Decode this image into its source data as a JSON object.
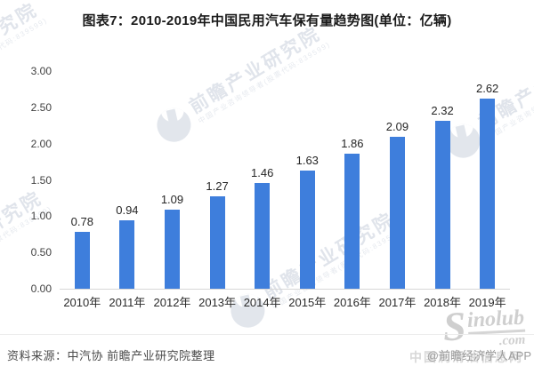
{
  "title": "图表7：2010-2019年中国民用汽车保有量趋势图(单位：亿辆)",
  "chart_data": {
    "type": "bar",
    "categories": [
      "2010年",
      "2011年",
      "2012年",
      "2013年",
      "2014年",
      "2015年",
      "2016年",
      "2017年",
      "2018年",
      "2019年"
    ],
    "values": [
      0.78,
      0.94,
      1.09,
      1.27,
      1.46,
      1.63,
      1.86,
      2.09,
      2.32,
      2.62
    ],
    "value_labels": [
      "0.78",
      "0.94",
      "1.09",
      "1.27",
      "1.46",
      "1.63",
      "1.86",
      "2.09",
      "2.32",
      "2.62"
    ],
    "title": "2010-2019年中国民用汽车保有量趋势图",
    "unit": "亿辆",
    "xlabel": "",
    "ylabel": "",
    "ylim": [
      0,
      3.0
    ],
    "yticks": [
      "0.00",
      "0.50",
      "1.00",
      "1.50",
      "2.00",
      "2.50",
      "3.00"
    ],
    "grid": false,
    "legend": null,
    "bar_color": "#3e7edc",
    "axis_line_color": "#d6d6d6"
  },
  "footer": {
    "source": "资料来源：中汽协 前瞻产业研究院整理",
    "credit": "@前瞻经济学人APP"
  },
  "watermarks": {
    "brand_logo": "qianzhan-globe-icon",
    "brand_text": "前瞻产业研究院",
    "brand_subtext": "中国产业咨询领导者(股票代码:839599)",
    "sinolub_s": "S",
    "sinolub_name": "inolub",
    "sinolub_com": ".com",
    "sinolub_cn": "中国润滑油信息网"
  }
}
